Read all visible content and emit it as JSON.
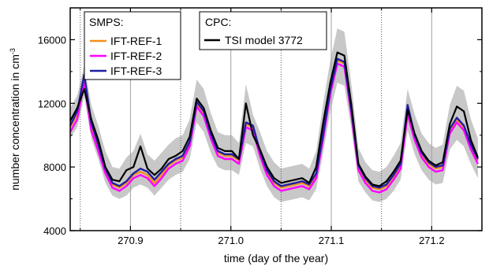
{
  "chart_data": {
    "type": "line",
    "title": "",
    "xlabel": "time (day of the year)",
    "ylabel_main": "number concentration in cm",
    "ylabel_exp": "-3",
    "xlim": [
      270.84,
      271.25
    ],
    "ylim": [
      4000,
      18000
    ],
    "xticks": [
      270.9,
      271.0,
      271.1,
      271.2
    ],
    "xtick_labels": [
      "270.9",
      "271.0",
      "271.1",
      "271.2"
    ],
    "yticks": [
      4000,
      8000,
      12000,
      16000
    ],
    "ytick_labels": [
      "4000",
      "8000",
      "12000",
      "16000"
    ],
    "grid": "vertical lines: solid at major x ticks, dotted at x = 270.85, 270.95, 271.05, 271.15",
    "legend_smps_title": "SMPS:",
    "legend_cpc_title": "CPC:",
    "x": [
      270.84,
      270.847,
      270.854,
      270.861,
      270.868,
      270.875,
      270.882,
      270.889,
      270.896,
      270.903,
      270.91,
      270.917,
      270.924,
      270.931,
      270.938,
      270.945,
      270.952,
      270.959,
      270.966,
      270.973,
      270.98,
      270.987,
      270.994,
      271.001,
      271.008,
      271.015,
      271.022,
      271.029,
      271.036,
      271.043,
      271.05,
      271.057,
      271.064,
      271.071,
      271.078,
      271.085,
      271.092,
      271.099,
      271.106,
      271.113,
      271.12,
      271.127,
      271.134,
      271.141,
      271.148,
      271.155,
      271.162,
      271.169,
      271.176,
      271.183,
      271.19,
      271.197,
      271.204,
      271.211,
      271.218,
      271.225,
      271.232,
      271.239,
      271.246
    ],
    "series": [
      {
        "name": "IFT-REF-1",
        "color": "#f5901e",
        "values": [
          10500,
          11300,
          13600,
          10600,
          9300,
          7800,
          6900,
          6700,
          7000,
          7500,
          7700,
          7500,
          7000,
          7500,
          8100,
          8400,
          8600,
          9500,
          12000,
          11400,
          10000,
          8900,
          8700,
          8700,
          8400,
          10700,
          10500,
          8900,
          7700,
          7000,
          6700,
          6800,
          6900,
          7000,
          6800,
          7500,
          10000,
          12800,
          14700,
          14500,
          11500,
          8000,
          7200,
          6700,
          6600,
          6800,
          7400,
          8100,
          11500,
          9900,
          8800,
          8200,
          7900,
          8000,
          10300,
          11000,
          10500,
          9300,
          8400
        ]
      },
      {
        "name": "IFT-REF-2",
        "color": "#ff00ff",
        "values": [
          10200,
          11000,
          13300,
          10300,
          9000,
          7600,
          6700,
          6500,
          6800,
          7300,
          7500,
          7300,
          6800,
          7300,
          7900,
          8200,
          8400,
          9300,
          11800,
          11200,
          9800,
          8700,
          8500,
          8500,
          8200,
          10500,
          10300,
          8700,
          7500,
          6800,
          6500,
          6600,
          6700,
          6800,
          6600,
          7300,
          9800,
          12600,
          14500,
          14300,
          11300,
          7800,
          7000,
          6500,
          6400,
          6600,
          7200,
          7900,
          11300,
          9700,
          8600,
          8000,
          7700,
          7800,
          10100,
          10800,
          10300,
          9100,
          8200
        ]
      },
      {
        "name": "IFT-REF-3",
        "color": "#1f1fa0",
        "values": [
          10600,
          11500,
          13800,
          10800,
          9400,
          7900,
          7000,
          6800,
          7100,
          7600,
          7900,
          7700,
          7200,
          7700,
          8200,
          8500,
          8700,
          9600,
          12100,
          11500,
          10100,
          9000,
          8800,
          8800,
          8500,
          10800,
          10600,
          9000,
          7800,
          7100,
          6800,
          6900,
          7000,
          7100,
          6900,
          7600,
          10100,
          12900,
          14800,
          14600,
          11600,
          8100,
          7300,
          6800,
          6700,
          6900,
          7500,
          8200,
          11900,
          10000,
          8900,
          8300,
          8000,
          8100,
          10400,
          11100,
          10600,
          9400,
          8500
        ]
      },
      {
        "name": "TSI model 3772",
        "color": "#000000",
        "values": [
          10900,
          11700,
          12900,
          11000,
          9700,
          8000,
          7200,
          7100,
          7800,
          8000,
          9300,
          7900,
          7500,
          7900,
          8500,
          8700,
          9000,
          9900,
          12300,
          11700,
          10300,
          9200,
          9000,
          9000,
          8500,
          12000,
          10000,
          9100,
          8000,
          7300,
          7000,
          7100,
          7200,
          7300,
          7000,
          8000,
          10800,
          13300,
          15200,
          15000,
          11900,
          8200,
          7400,
          6900,
          6800,
          7100,
          7700,
          8400,
          11600,
          10100,
          9000,
          8400,
          8100,
          8300,
          10700,
          11800,
          11500,
          9700,
          8600
        ]
      }
    ],
    "uncertainty_band": {
      "color": "#c8c8c8",
      "lower": [
        9800,
        10500,
        12400,
        9800,
        8500,
        7000,
        6200,
        6000,
        6200,
        6700,
        6900,
        6700,
        6200,
        6700,
        7200,
        7500,
        7700,
        8500,
        10800,
        10200,
        8900,
        8000,
        7800,
        7800,
        7500,
        9500,
        9300,
        7900,
        6800,
        6100,
        5800,
        5900,
        6000,
        6100,
        5900,
        6600,
        8900,
        11500,
        13300,
        13100,
        10400,
        7100,
        6400,
        5900,
        5800,
        6000,
        6500,
        7200,
        10300,
        8800,
        7800,
        7200,
        6900,
        7000,
        9100,
        9700,
        9300,
        8200,
        7300
      ],
      "upper": [
        11700,
        12500,
        14400,
        11900,
        10600,
        9000,
        8000,
        7900,
        8600,
        9000,
        10100,
        8800,
        8400,
        8900,
        9400,
        9800,
        10000,
        11000,
        13500,
        12900,
        11400,
        10200,
        10000,
        10000,
        9500,
        13200,
        11300,
        10200,
        9000,
        8300,
        7900,
        8000,
        8100,
        8200,
        7900,
        9000,
        12000,
        14700,
        16700,
        16500,
        13200,
        9200,
        8300,
        7800,
        7700,
        8000,
        8700,
        9500,
        12900,
        11300,
        10100,
        9500,
        9200,
        9400,
        11900,
        13100,
        12800,
        11000,
        9800
      ]
    }
  }
}
